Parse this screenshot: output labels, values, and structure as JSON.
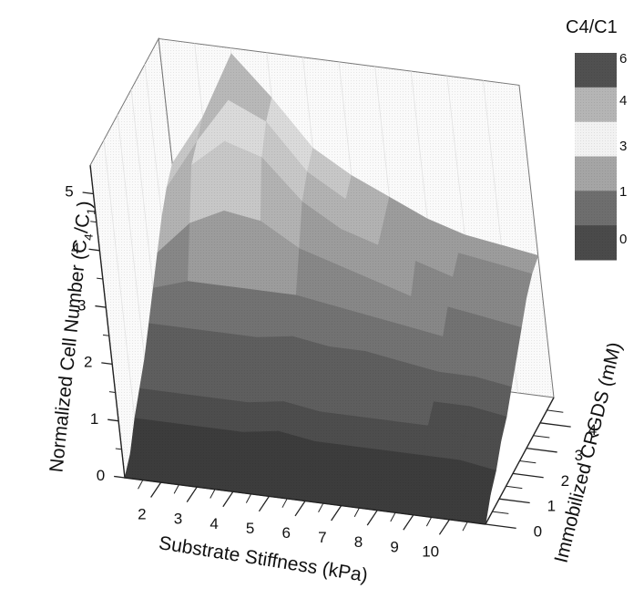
{
  "chart_data": {
    "type": "surface3d",
    "title": "",
    "xlabel": "Substrate Stiffness (kPa)",
    "ylabel": "Immobilized CRGDS (mM)",
    "zlabel": "Normalized Cell Number (C",
    "zlabel_sub1": "4",
    "zlabel_mid": "/C",
    "zlabel_sub2": "1",
    "zlabel_end": ")",
    "x_ticks": [
      "2",
      "3",
      "4",
      "5",
      "6",
      "7",
      "8",
      "9",
      "10"
    ],
    "y_ticks": [
      "0",
      "1",
      "2",
      "3",
      "4"
    ],
    "z_ticks": [
      "0",
      "1",
      "2",
      "3",
      "4",
      "5"
    ],
    "xlim": [
      1,
      11
    ],
    "ylim": [
      0,
      5
    ],
    "zlim": [
      0,
      5.5
    ],
    "x": [
      1,
      2,
      3,
      4,
      5,
      6,
      7,
      8,
      9,
      10,
      11
    ],
    "y": [
      0,
      0.5,
      1,
      1.5,
      2,
      2.5,
      3,
      3.5,
      4,
      4.5,
      5
    ],
    "z": [
      [
        0.0,
        0.0,
        0.0,
        0.0,
        0.0,
        0.0,
        0.0,
        0.0,
        0.0,
        0.0,
        0.0
      ],
      [
        0.2,
        0.3,
        0.3,
        0.3,
        0.3,
        0.3,
        0.3,
        0.3,
        0.3,
        0.3,
        0.3
      ],
      [
        0.6,
        0.6,
        0.6,
        0.6,
        0.7,
        0.6,
        0.6,
        0.6,
        0.6,
        0.6,
        0.5
      ],
      [
        0.9,
        0.9,
        0.9,
        0.9,
        1.0,
        0.9,
        0.9,
        0.9,
        0.9,
        0.8,
        0.8
      ],
      [
        1.2,
        1.3,
        1.2,
        1.2,
        1.3,
        1.2,
        1.2,
        1.2,
        1.1,
        1.1,
        1.0
      ],
      [
        1.6,
        1.6,
        1.6,
        1.6,
        1.7,
        1.6,
        1.6,
        1.5,
        1.4,
        1.4,
        1.3
      ],
      [
        2.0,
        2.2,
        2.2,
        2.2,
        2.2,
        2.1,
        2.0,
        1.9,
        1.8,
        1.7,
        1.6
      ],
      [
        2.4,
        3.0,
        3.3,
        3.2,
        2.8,
        2.6,
        2.4,
        2.2,
        2.1,
        2.0,
        1.9
      ],
      [
        2.8,
        3.8,
        4.3,
        4.1,
        3.4,
        3.0,
        2.8,
        2.6,
        2.4,
        2.3,
        2.2
      ],
      [
        3.1,
        4.0,
        4.8,
        4.5,
        3.7,
        3.3,
        3.0,
        2.8,
        2.6,
        2.5,
        2.4
      ],
      [
        3.3,
        4.2,
        5.4,
        4.7,
        3.9,
        3.5,
        3.2,
        2.9,
        2.7,
        2.6,
        2.5
      ]
    ],
    "colorbar": {
      "title": "C4/C1",
      "labels": [
        "6",
        "4",
        "3",
        "1",
        "0"
      ],
      "levels": [
        0.5,
        1.0,
        1.5,
        2.0,
        2.5,
        3.0,
        3.5,
        4.0,
        4.5,
        5.0
      ],
      "grays": [
        "#3c3c3c",
        "#4d4d4d",
        "#5e5e5e",
        "#727272",
        "#878787",
        "#9c9c9c",
        "#b2b2b2",
        "#c7c7c7",
        "#dadada",
        "#b8b8b8",
        "#5a5a5a"
      ],
      "swatches": [
        "#505050",
        "#b5b5b5",
        "#f2f2f2",
        "#a5a5a5",
        "#6e6e6e",
        "#4a4a4a"
      ]
    },
    "grid": true,
    "legend_position": "top-right"
  }
}
